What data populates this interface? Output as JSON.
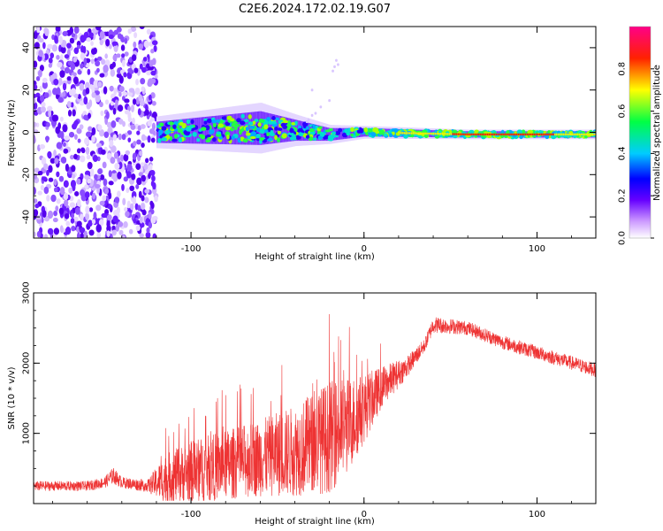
{
  "title": "C2E6.2024.172.02.19.G07",
  "chart_data": [
    {
      "type": "heatmap",
      "xlabel": "Height of straight line (km)",
      "ylabel": "Frequency (Hz)",
      "xlim": [
        -191,
        134
      ],
      "ylim": [
        -50,
        50
      ],
      "x_ticks": [
        -100,
        0,
        100
      ],
      "x_tick_labels": [
        "-100",
        "0",
        "100"
      ],
      "y_ticks": [
        -40,
        -20,
        0,
        20,
        40
      ],
      "y_tick_labels": [
        "-40",
        "-20",
        "0",
        "20",
        "40"
      ],
      "colorbar": {
        "label": "Normalized spectral amplitude",
        "range": [
          0,
          1
        ],
        "ticks": [
          0.0,
          0.2,
          0.4,
          0.6,
          0.8
        ],
        "tick_labels": [
          "0.0",
          "0.2",
          "0.4",
          "0.6",
          "0.8"
        ]
      },
      "noise_region_x": [
        -191,
        -120
      ],
      "signal": {
        "description_points": [
          {
            "x": -120,
            "center_hz": 0,
            "spread_hz": 5
          },
          {
            "x": -60,
            "center_hz": 2,
            "spread_hz": 8
          },
          {
            "x": -40,
            "center_hz": 1,
            "spread_hz": 5
          },
          {
            "x": -20,
            "center_hz": -1,
            "spread_hz": 3
          },
          {
            "x": 0,
            "center_hz": 0,
            "spread_hz": 2
          },
          {
            "x": 60,
            "center_hz": -1,
            "spread_hz": 1.5
          },
          {
            "x": 134,
            "center_hz": -1,
            "spread_hz": 1.5
          }
        ]
      }
    },
    {
      "type": "line",
      "xlabel": "Height of straight line (km)",
      "ylabel": "SNR (10 * v/v)",
      "xlim": [
        -191,
        134
      ],
      "ylim": [
        0,
        3000
      ],
      "x_ticks": [
        -100,
        0,
        100
      ],
      "x_tick_labels": [
        "-100",
        "0",
        "100"
      ],
      "y_ticks": [
        1000,
        2000,
        3000
      ],
      "y_tick_labels": [
        "1000",
        "2000",
        "3000"
      ],
      "color": "#ee3333",
      "envelope": {
        "x": [
          -191,
          -160,
          -150,
          -145,
          -140,
          -125,
          -115,
          -100,
          -80,
          -60,
          -40,
          -20,
          -10,
          0,
          10,
          25,
          35,
          40,
          60,
          80,
          100,
          134
        ],
        "base": [
          250,
          250,
          300,
          400,
          300,
          250,
          350,
          450,
          550,
          650,
          750,
          950,
          1100,
          1350,
          1650,
          1950,
          2250,
          2550,
          2500,
          2300,
          2150,
          1900
        ],
        "spread": [
          70,
          70,
          80,
          120,
          80,
          90,
          350,
          450,
          500,
          550,
          650,
          800,
          700,
          500,
          300,
          150,
          100,
          120,
          100,
          100,
          100,
          100
        ]
      }
    }
  ]
}
